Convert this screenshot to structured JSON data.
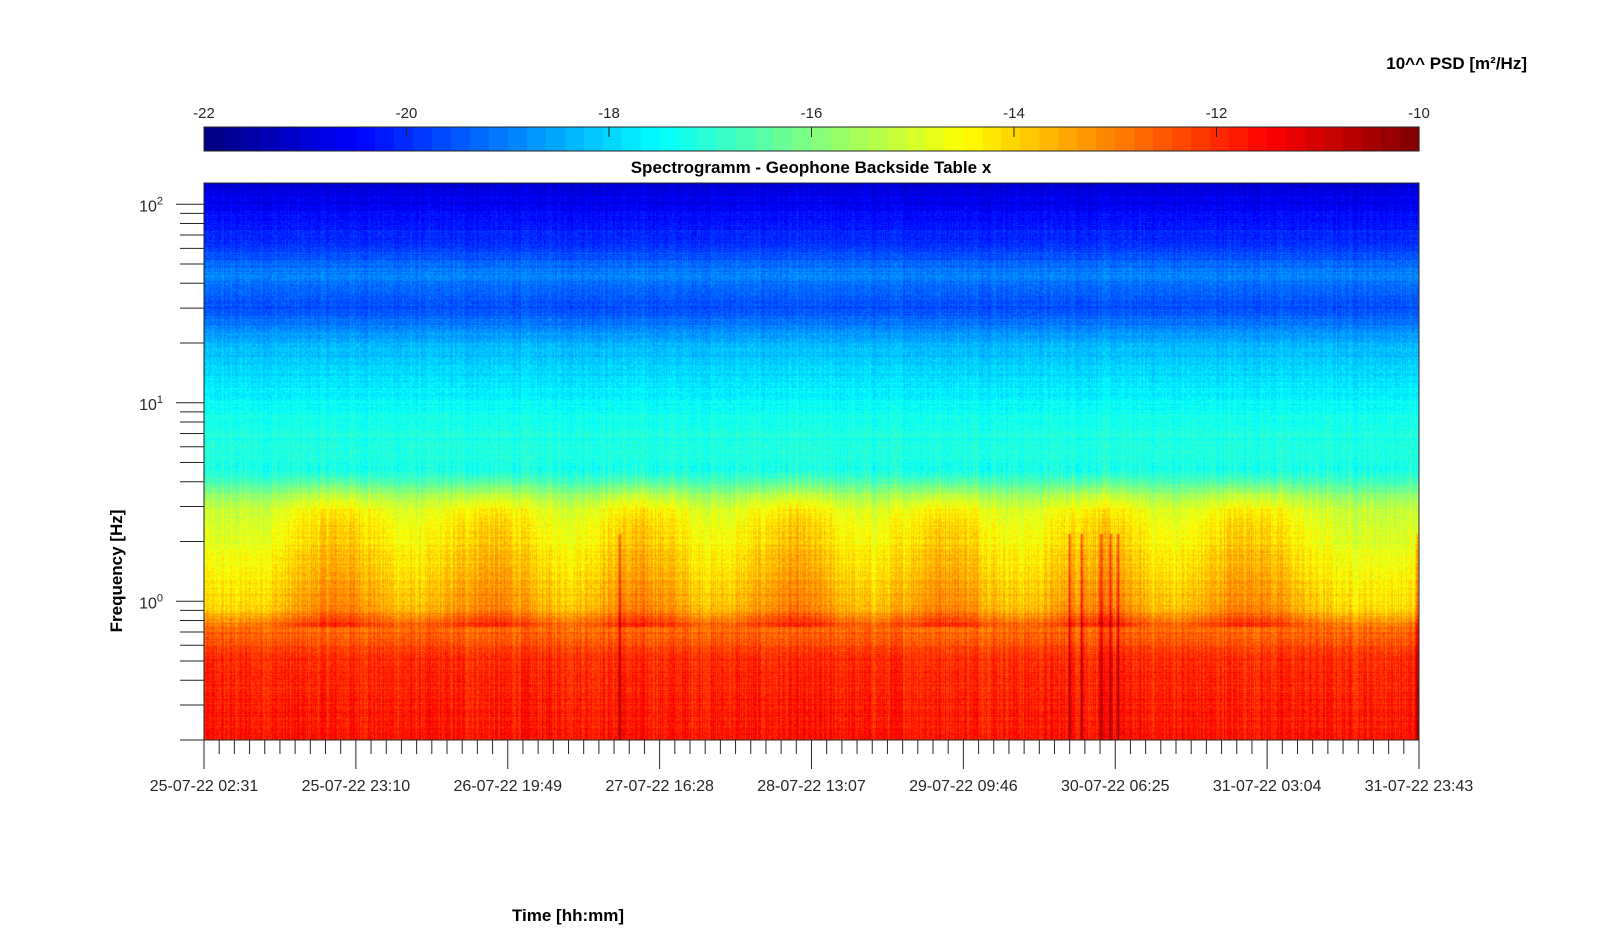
{
  "chart_data": {
    "type": "heatmap",
    "title": "Spectrogramm - Geophone Backside Table x",
    "xlabel": "Time [hh:mm]",
    "ylabel": "Frequency [Hz]",
    "colorbar_label": "10^^ PSD [m²/Hz]",
    "colorbar_range": [
      -22,
      -10
    ],
    "colorbar_ticks": [
      "-22",
      "-20",
      "-18",
      "-16",
      "-14",
      "-12",
      "-10"
    ],
    "colormap": "jet",
    "y_scale": "log",
    "y_range": [
      0.2,
      128
    ],
    "y_tick_labels": [
      {
        "base": "10",
        "exp": "0",
        "value": 1
      },
      {
        "base": "10",
        "exp": "1",
        "value": 10
      },
      {
        "base": "10",
        "exp": "2",
        "value": 100
      }
    ],
    "x_tick_labels": [
      "25-07-22 02:31",
      "25-07-22 23:10",
      "26-07-22 19:49",
      "27-07-22 16:28",
      "28-07-22 13:07",
      "29-07-22 09:46",
      "30-07-22 06:25",
      "31-07-22 03:04",
      "31-07-22 23:43"
    ],
    "frequency_profile_hz_vs_log10psd": [
      {
        "f": 0.2,
        "psd": -11.7
      },
      {
        "f": 0.5,
        "psd": -12.0
      },
      {
        "f": 0.75,
        "psd": -12.8
      },
      {
        "f": 0.9,
        "psd": -14.0
      },
      {
        "f": 1.5,
        "psd": -14.6
      },
      {
        "f": 3.0,
        "psd": -15.2
      },
      {
        "f": 4.5,
        "psd": -17.2
      },
      {
        "f": 6.5,
        "psd": -17.1
      },
      {
        "f": 10,
        "psd": -17.5
      },
      {
        "f": 20,
        "psd": -18.4
      },
      {
        "f": 30,
        "psd": -19.6
      },
      {
        "f": 45,
        "psd": -19.0
      },
      {
        "f": 60,
        "psd": -19.8
      },
      {
        "f": 100,
        "psd": -20.6
      },
      {
        "f": 128,
        "psd": -21.0
      }
    ],
    "day_activity_bands": [
      "25-07-22",
      "26-07-22",
      "27-07-22",
      "28-07-22",
      "29-07-22",
      "30-07-22",
      "31-07-22"
    ],
    "transient_events": [
      "27-07-22",
      "30-07-22",
      "30-07-22",
      "30-07-22",
      "30-07-22",
      "30-07-22",
      "31-07-22 23:43"
    ]
  }
}
